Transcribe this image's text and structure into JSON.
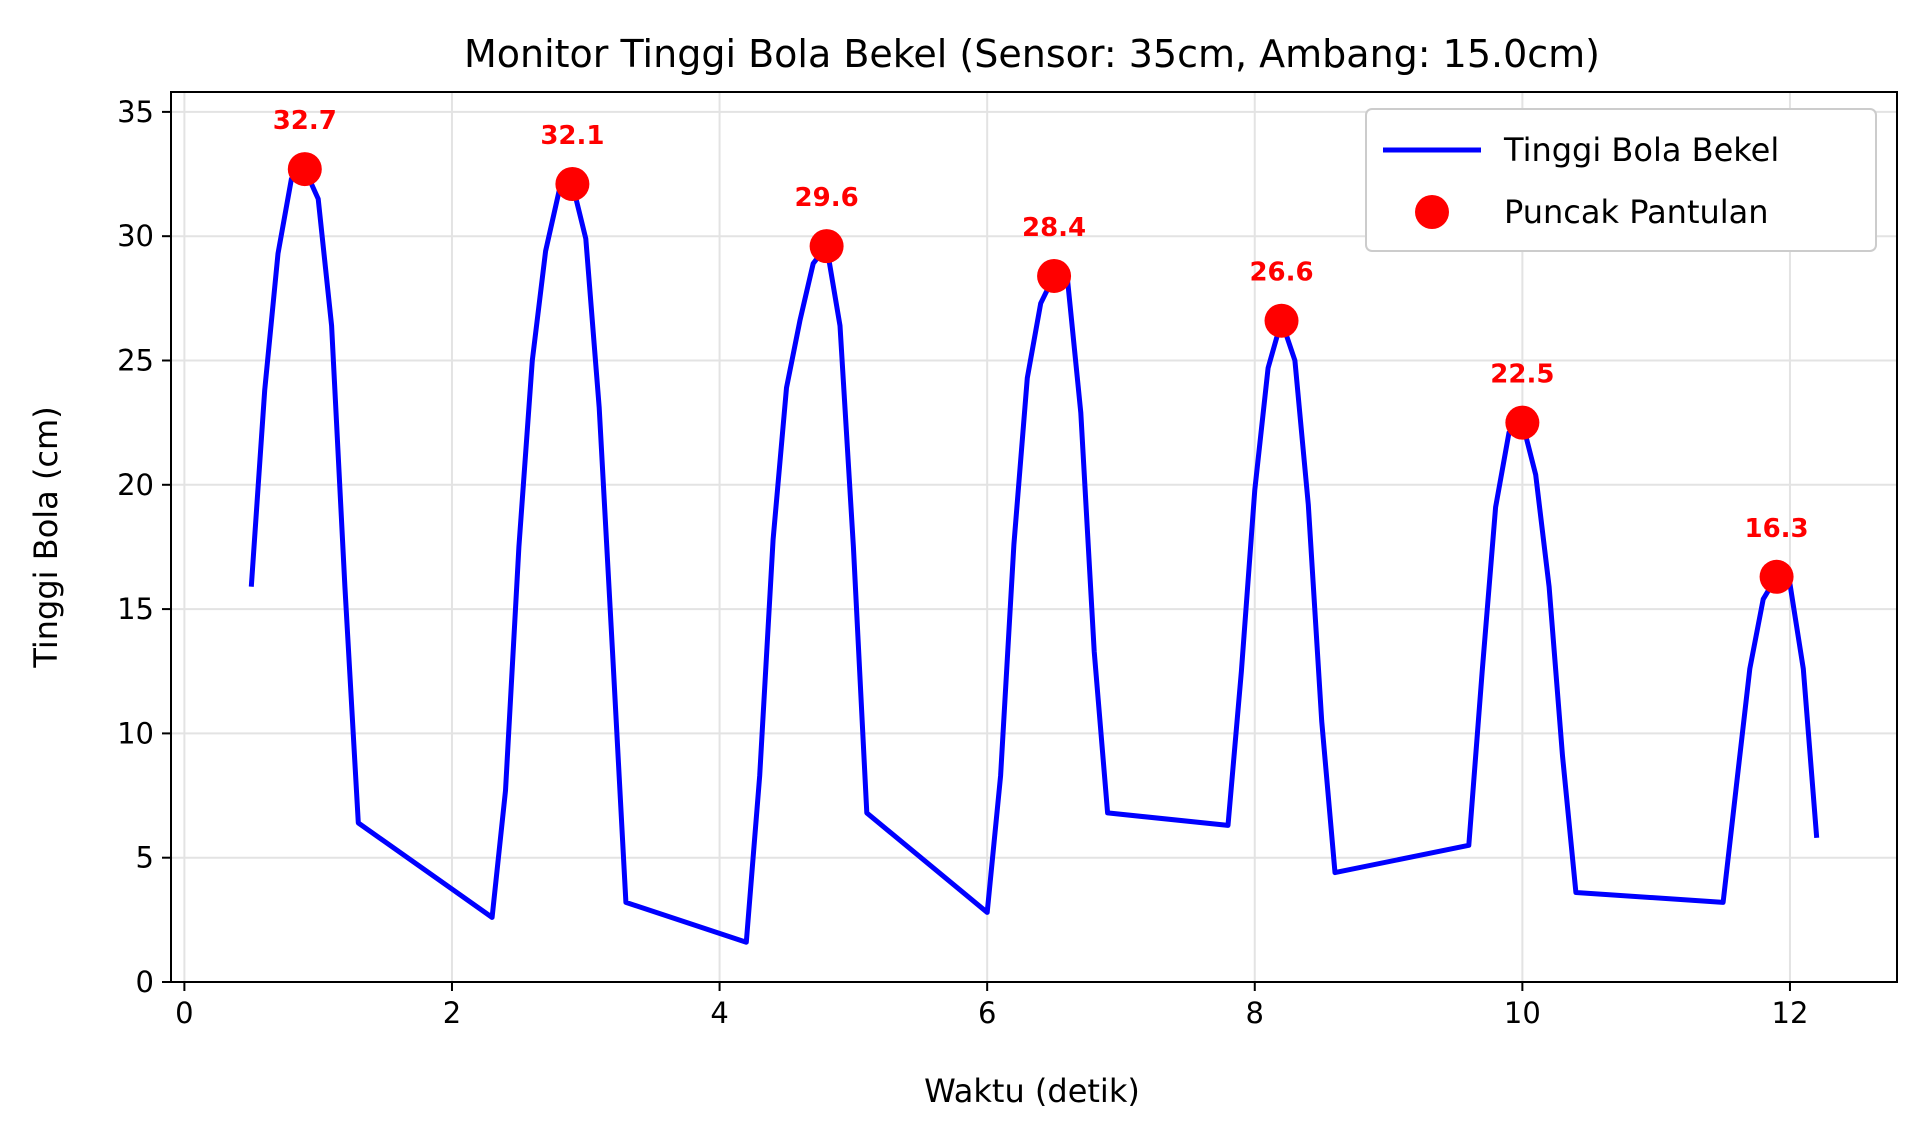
{
  "chart_data": {
    "type": "line",
    "title": "Monitor Tinggi Bola Bekel (Sensor: 35cm, Ambang: 15.0cm)",
    "xlabel": "Waktu (detik)",
    "ylabel": "Tinggi Bola (cm)",
    "xlim": [
      -0.1,
      12.8
    ],
    "ylim": [
      0,
      35.8
    ],
    "xticks": [
      0,
      2,
      4,
      6,
      8,
      10,
      12
    ],
    "yticks": [
      0,
      5,
      10,
      15,
      20,
      25,
      30,
      35
    ],
    "grid": true,
    "legend_position": "top-right",
    "colors": {
      "line": "#0000ff",
      "peak": "#ff0000"
    },
    "series": [
      {
        "name": "Tinggi Bola Bekel",
        "kind": "line",
        "x": [
          0.5,
          0.6,
          0.7,
          0.8,
          0.9,
          1.0,
          1.1,
          1.2,
          1.3,
          2.3,
          2.4,
          2.5,
          2.6,
          2.7,
          2.8,
          2.9,
          3.0,
          3.1,
          3.2,
          3.3,
          4.2,
          4.3,
          4.4,
          4.5,
          4.6,
          4.7,
          4.8,
          4.9,
          5.0,
          5.1,
          6.0,
          6.1,
          6.2,
          6.3,
          6.4,
          6.5,
          6.6,
          6.7,
          6.8,
          6.9,
          7.8,
          7.9,
          8.0,
          8.1,
          8.2,
          8.3,
          8.4,
          8.5,
          8.6,
          9.6,
          9.7,
          9.8,
          9.9,
          10.0,
          10.1,
          10.2,
          10.3,
          10.4,
          11.5,
          11.6,
          11.7,
          11.8,
          11.9,
          12.0,
          12.1,
          12.2
        ],
        "y": [
          15.9,
          23.8,
          29.3,
          32.3,
          32.7,
          31.5,
          26.4,
          15.9,
          6.4,
          2.6,
          7.7,
          17.5,
          25.0,
          29.4,
          31.8,
          32.1,
          29.9,
          23.1,
          13.3,
          3.2,
          1.6,
          8.3,
          17.8,
          23.9,
          26.6,
          28.9,
          29.6,
          26.4,
          17.5,
          6.8,
          2.8,
          8.3,
          17.6,
          24.3,
          27.3,
          28.4,
          28.3,
          22.9,
          13.3,
          6.8,
          6.3,
          12.5,
          19.8,
          24.7,
          26.6,
          25.0,
          19.2,
          10.5,
          4.4,
          5.5,
          12.5,
          19.1,
          22.1,
          22.5,
          20.4,
          15.9,
          9.1,
          3.6,
          3.2,
          7.9,
          12.6,
          15.4,
          16.3,
          16.0,
          12.6,
          5.8
        ]
      },
      {
        "name": "Puncak Pantulan",
        "kind": "scatter",
        "x": [
          0.9,
          2.9,
          4.8,
          6.5,
          8.2,
          10.0,
          11.9
        ],
        "y": [
          32.7,
          32.1,
          29.6,
          28.4,
          26.6,
          22.5,
          16.3
        ],
        "labels": [
          "32.7",
          "32.1",
          "29.6",
          "28.4",
          "26.6",
          "22.5",
          "16.3"
        ]
      }
    ]
  }
}
